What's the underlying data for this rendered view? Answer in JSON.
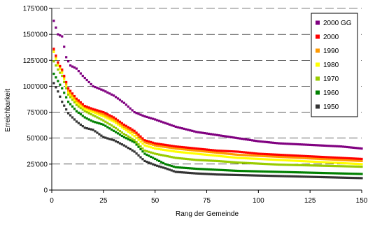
{
  "chart_data": {
    "type": "scatter",
    "xlabel": "Rang der Gemeinde",
    "ylabel": "Erreichbarkeit",
    "xlim": [
      0,
      150
    ],
    "ylim": [
      0,
      175000
    ],
    "x_ticks": [
      "0",
      "25",
      "50",
      "75",
      "100",
      "125",
      "150"
    ],
    "y_ticks": [
      "0",
      "25'000",
      "50'000",
      "75'000",
      "100'000",
      "125'000",
      "150'000",
      "175'000"
    ],
    "grid": "horizontal dashed",
    "legend_position": "top-right",
    "series": [
      {
        "name": "2000 GG",
        "color": "#800080",
        "anchors": [
          [
            1,
            163000
          ],
          [
            3,
            150000
          ],
          [
            5,
            148000
          ],
          [
            7,
            128000
          ],
          [
            9,
            120000
          ],
          [
            12,
            117000
          ],
          [
            15,
            110000
          ],
          [
            20,
            100000
          ],
          [
            25,
            96000
          ],
          [
            30,
            91000
          ],
          [
            35,
            84000
          ],
          [
            40,
            75000
          ],
          [
            45,
            71000
          ],
          [
            50,
            68000
          ],
          [
            60,
            61000
          ],
          [
            70,
            56000
          ],
          [
            80,
            53000
          ],
          [
            90,
            50000
          ],
          [
            100,
            47000
          ],
          [
            110,
            45000
          ],
          [
            120,
            44000
          ],
          [
            130,
            43000
          ],
          [
            140,
            42000
          ],
          [
            150,
            40000
          ]
        ]
      },
      {
        "name": "2000",
        "color": "#ff0000",
        "anchors": [
          [
            1,
            136000
          ],
          [
            3,
            123000
          ],
          [
            5,
            116000
          ],
          [
            8,
            98000
          ],
          [
            12,
            88000
          ],
          [
            16,
            81000
          ],
          [
            20,
            78000
          ],
          [
            25,
            75000
          ],
          [
            30,
            70000
          ],
          [
            35,
            63000
          ],
          [
            40,
            57000
          ],
          [
            45,
            48000
          ],
          [
            50,
            45000
          ],
          [
            60,
            42000
          ],
          [
            70,
            40000
          ],
          [
            80,
            38000
          ],
          [
            90,
            37000
          ],
          [
            100,
            35000
          ],
          [
            110,
            34000
          ],
          [
            120,
            33000
          ],
          [
            130,
            32000
          ],
          [
            140,
            31000
          ],
          [
            150,
            30000
          ]
        ]
      },
      {
        "name": "1990",
        "color": "#ff9900",
        "anchors": [
          [
            1,
            135000
          ],
          [
            3,
            122000
          ],
          [
            5,
            115000
          ],
          [
            8,
            96000
          ],
          [
            12,
            86000
          ],
          [
            16,
            80000
          ],
          [
            20,
            77000
          ],
          [
            25,
            73000
          ],
          [
            30,
            68000
          ],
          [
            35,
            61000
          ],
          [
            40,
            55000
          ],
          [
            45,
            46000
          ],
          [
            50,
            43000
          ],
          [
            60,
            40000
          ],
          [
            70,
            38000
          ],
          [
            80,
            36000
          ],
          [
            90,
            34000
          ],
          [
            100,
            33000
          ],
          [
            110,
            32000
          ],
          [
            120,
            31000
          ],
          [
            130,
            30000
          ],
          [
            140,
            29000
          ],
          [
            150,
            28000
          ]
        ]
      },
      {
        "name": "1980",
        "color": "#ffff00",
        "anchors": [
          [
            1,
            133000
          ],
          [
            3,
            120000
          ],
          [
            5,
            113000
          ],
          [
            8,
            94000
          ],
          [
            12,
            84000
          ],
          [
            16,
            78000
          ],
          [
            20,
            75000
          ],
          [
            25,
            71000
          ],
          [
            30,
            66000
          ],
          [
            35,
            59000
          ],
          [
            40,
            52000
          ],
          [
            45,
            43000
          ],
          [
            50,
            40000
          ],
          [
            60,
            37000
          ],
          [
            70,
            35000
          ],
          [
            80,
            33000
          ],
          [
            90,
            31000
          ],
          [
            100,
            30000
          ],
          [
            110,
            29000
          ],
          [
            120,
            28000
          ],
          [
            130,
            27000
          ],
          [
            140,
            26000
          ],
          [
            150,
            25000
          ]
        ]
      },
      {
        "name": "1970",
        "color": "#99cc00",
        "anchors": [
          [
            1,
            124000
          ],
          [
            3,
            116000
          ],
          [
            5,
            110000
          ],
          [
            8,
            92000
          ],
          [
            12,
            82000
          ],
          [
            16,
            76000
          ],
          [
            20,
            72000
          ],
          [
            25,
            67000
          ],
          [
            30,
            61000
          ],
          [
            35,
            54000
          ],
          [
            40,
            48000
          ],
          [
            45,
            38000
          ],
          [
            50,
            35000
          ],
          [
            60,
            31000
          ],
          [
            70,
            29000
          ],
          [
            80,
            28000
          ],
          [
            90,
            26500
          ],
          [
            100,
            25500
          ],
          [
            110,
            24500
          ],
          [
            120,
            24000
          ],
          [
            130,
            23500
          ],
          [
            140,
            23000
          ],
          [
            150,
            22500
          ]
        ]
      },
      {
        "name": "1960",
        "color": "#008000",
        "anchors": [
          [
            1,
            112000
          ],
          [
            3,
            105000
          ],
          [
            5,
            98000
          ],
          [
            8,
            85000
          ],
          [
            12,
            76000
          ],
          [
            16,
            70000
          ],
          [
            20,
            66000
          ],
          [
            25,
            63000
          ],
          [
            30,
            57000
          ],
          [
            35,
            51000
          ],
          [
            40,
            46000
          ],
          [
            45,
            35000
          ],
          [
            50,
            30000
          ],
          [
            55,
            25000
          ],
          [
            60,
            22000
          ],
          [
            70,
            20500
          ],
          [
            80,
            19500
          ],
          [
            90,
            18500
          ],
          [
            100,
            18000
          ],
          [
            110,
            17500
          ],
          [
            120,
            17000
          ],
          [
            130,
            16500
          ],
          [
            140,
            16000
          ],
          [
            150,
            15500
          ]
        ]
      },
      {
        "name": "1950",
        "color": "#333333",
        "anchors": [
          [
            1,
            103000
          ],
          [
            3,
            95000
          ],
          [
            5,
            85000
          ],
          [
            8,
            74000
          ],
          [
            12,
            66000
          ],
          [
            16,
            60000
          ],
          [
            20,
            58000
          ],
          [
            25,
            51000
          ],
          [
            30,
            48000
          ],
          [
            35,
            43000
          ],
          [
            40,
            37000
          ],
          [
            45,
            28000
          ],
          [
            50,
            24000
          ],
          [
            55,
            21000
          ],
          [
            60,
            17500
          ],
          [
            70,
            16000
          ],
          [
            80,
            15000
          ],
          [
            90,
            14500
          ],
          [
            100,
            14000
          ],
          [
            110,
            13500
          ],
          [
            120,
            13000
          ],
          [
            130,
            12500
          ],
          [
            140,
            12000
          ],
          [
            150,
            11500
          ]
        ]
      }
    ]
  }
}
